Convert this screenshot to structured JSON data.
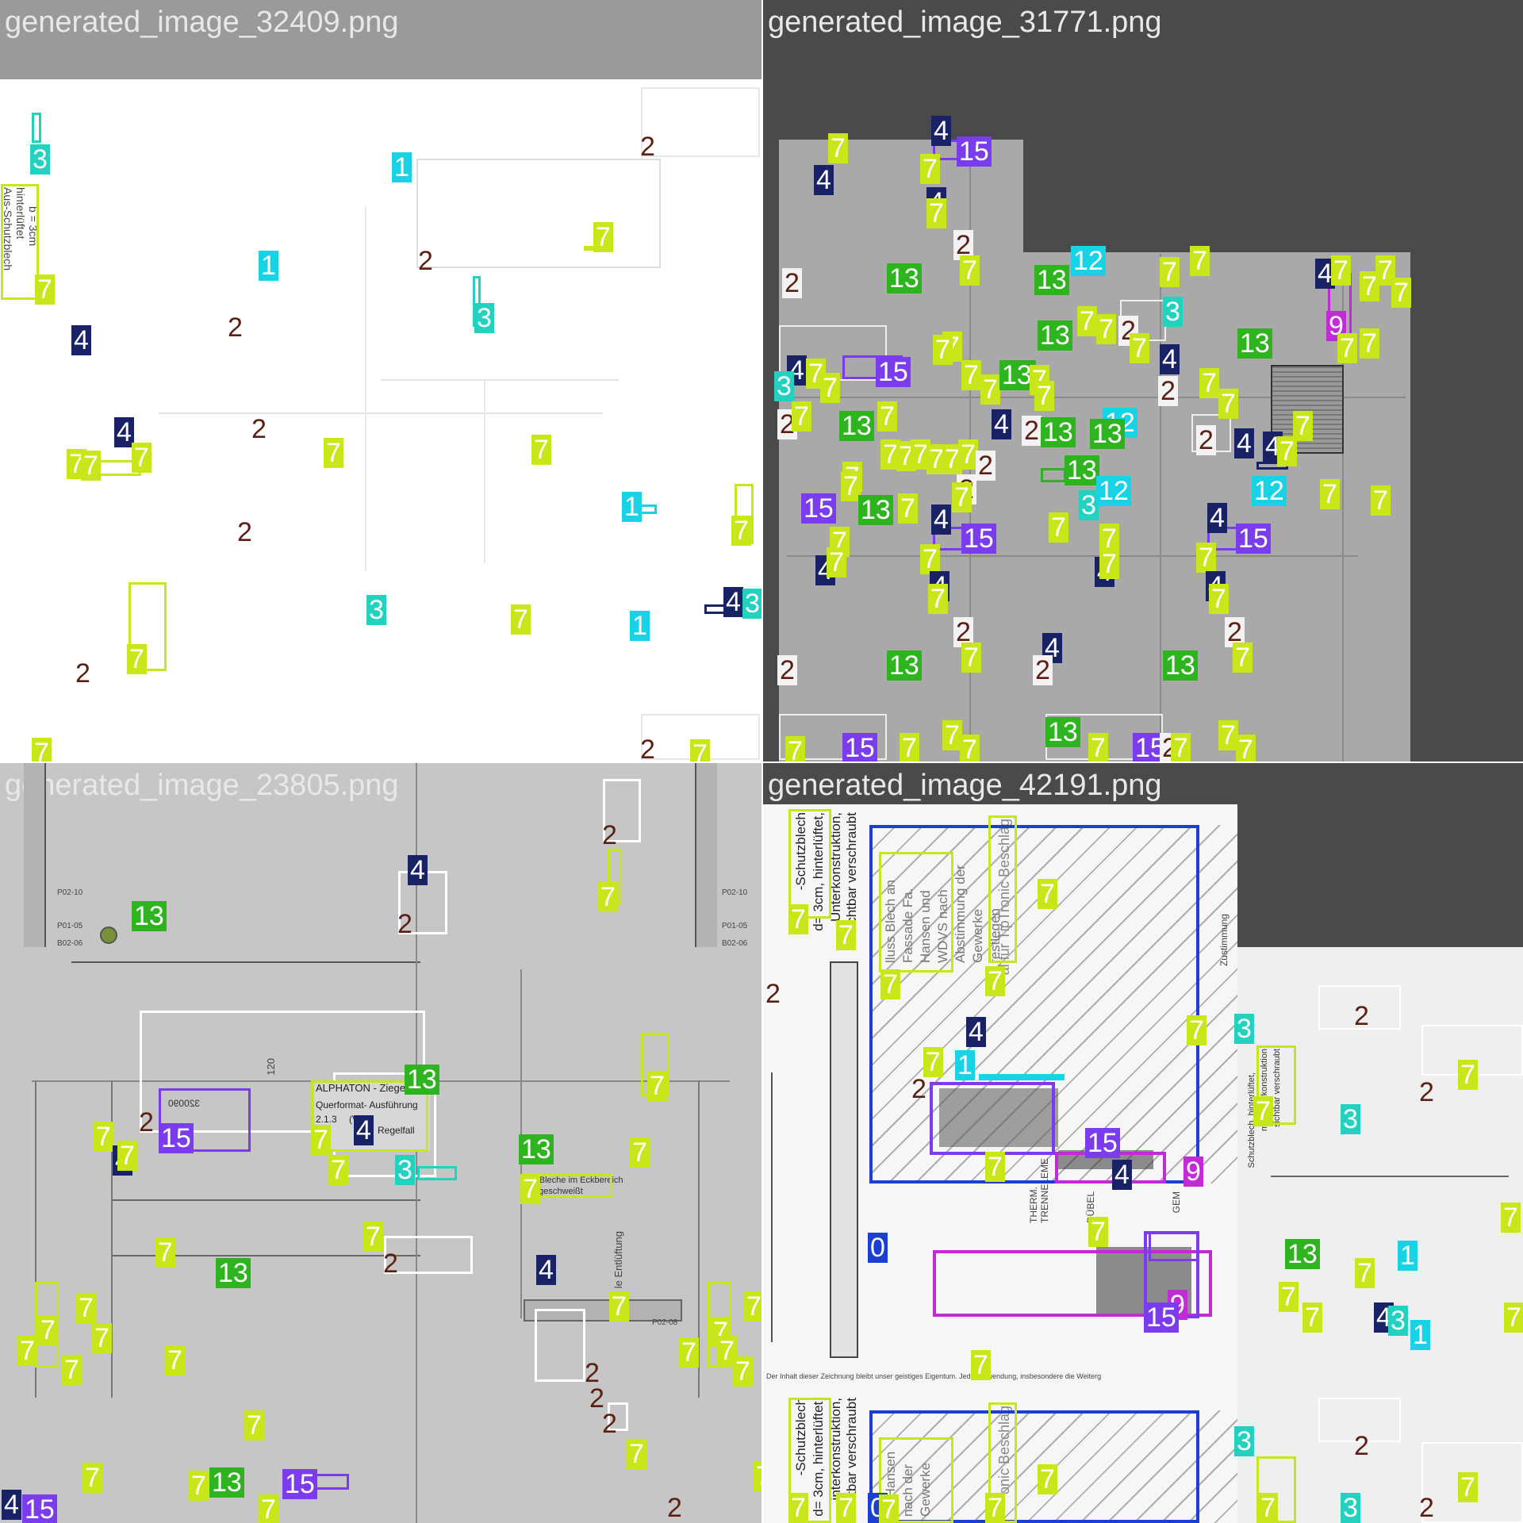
{
  "tiles": [
    {
      "filename": "generated_image_32409.png"
    },
    {
      "filename": "generated_image_31771.png"
    },
    {
      "filename": "generated_image_23805.png"
    },
    {
      "filename": "generated_image_42191.png"
    }
  ],
  "drawing_text": {
    "ti_ausfuehrung": "Aus-Schutzblech",
    "ti_hinterlueftet": "hinterlüftet",
    "ti_b3cm": "b = 3cm",
    "tc_alphaton": "ALPHATON - Ziegelfa",
    "tc_querformat": "Querformat- Ausführung",
    "tc_213": "2.1.3",
    "tc_v": "(V)",
    "tc_regelfall": "Regelfall",
    "tc_p0210a": "P02-10",
    "tc_p0105a": "P01-05",
    "tc_b0206a": "B02-06",
    "tc_p0210b": "P02-10",
    "tc_p0105b": "P01-05",
    "tc_b0206b": "B02-06",
    "tc_bleche": "e-Bleche im Eckbereich",
    "tc_geschweisst": "e geschweißt",
    "tc_entlueftung": "le Entlüftung",
    "tc_120": "120",
    "tc_p0208": "P02-08",
    "tc_320090": "320090",
    "td_schutzblech": "-Schutzblech",
    "td_hinter": "d= 3cm, hinterlüftet,",
    "td_unterkonstruktion": "Unterkonstruktion,",
    "td_sichtbar": "sichtbar verschraubt",
    "td_hansen": "lluss Blech an Fassade Fa. Hansen und WDVS nach Abstimmung der Gewerke festlegen",
    "td_tiptronic": "al für TipTronic Beschlag",
    "td_therm": "THERM. TRENNELEME",
    "td_duebel": "DÜBEL",
    "td_gem": "GEM",
    "td_zustimmung": "Zustimmung",
    "td_footer": "Der Inhalt dieser Zeichnung bleibt unser geistiges Eigentum. Jede Verwendung, insbesondere die Weiterg",
    "td_schutzblech2": "-Schutzblech",
    "td_hinter2": "d= 3cm, hinterlüftet,",
    "td_unterkonstruktion2": "interkonstruktion,",
    "td_sichtbar2": "sichtbar verschraubt",
    "td_beschlag2": "onic Beschlag",
    "td_hansen2": "an Hansen nach der Gewerke",
    "td_right_schutz": "Schutzblech, hinterlüftet,",
    "td_right_mit": "mit Unterkonstruktion",
    "td_right_sicht": "sichtbar verschraubt"
  },
  "colors": {
    "c0": "#1a3fd1",
    "c1": "#18d2e6",
    "c2": "#5c1f14",
    "c3": "#23d1bf",
    "c4": "#1a2266",
    "c7": "#c8e619",
    "c9": "#c12bd6",
    "c12": "#18d2e6",
    "c13": "#2db41e",
    "c15": "#7a3cec"
  }
}
